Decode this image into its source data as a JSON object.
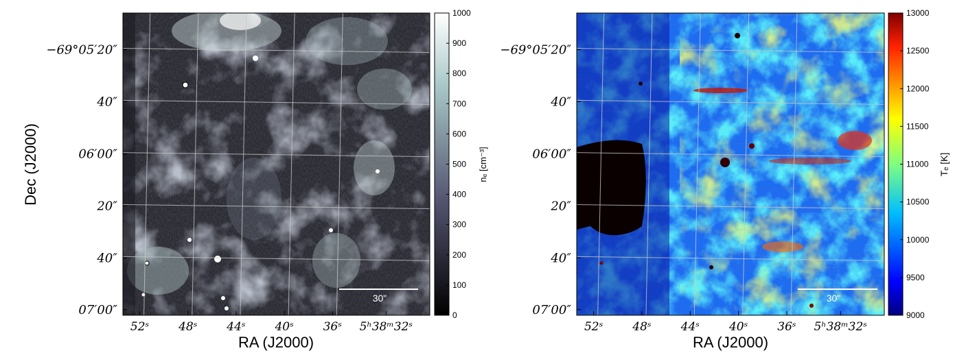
{
  "chart_data": [
    {
      "type": "heatmap",
      "name": "electron-density-map",
      "colormap": "bone",
      "xlabel": "RA (J2000)",
      "ylabel": "Dec (J2000)",
      "x_ticks": [
        "52ˢ",
        "48ˢ",
        "44ˢ",
        "40ˢ",
        "36ˢ",
        "5ʰ38ᵐ32ˢ"
      ],
      "y_ticks": [
        "−69°05′20″",
        "40″",
        "06′00″",
        "20″",
        "40″",
        "07′00″"
      ],
      "colorbar": {
        "label": "nₑ [cm⁻³]",
        "min": 0,
        "max": 1000,
        "ticks": [
          0,
          100,
          200,
          300,
          400,
          500,
          600,
          700,
          800,
          900,
          1000
        ]
      },
      "scalebar_label": "30\""
    },
    {
      "type": "heatmap",
      "name": "electron-temperature-map",
      "colormap": "jet",
      "xlabel": "RA (J2000)",
      "ylabel": "",
      "x_ticks": [
        "52ˢ",
        "48ˢ",
        "44ˢ",
        "40ˢ",
        "36ˢ",
        "5ʰ38ᵐ32ˢ"
      ],
      "y_ticks": [
        "−69°05′20″",
        "40″",
        "06′00″",
        "20″",
        "40″",
        "07′00″"
      ],
      "colorbar": {
        "label": "Tₑ [K]",
        "min": 9000,
        "max": 13000,
        "ticks": [
          9000,
          9500,
          10000,
          10500,
          11000,
          11500,
          12000,
          12500,
          13000
        ]
      },
      "scalebar_label": "30\""
    }
  ],
  "colors": {
    "grid": "#c8c8c8",
    "scalebar": "#ffffff"
  }
}
